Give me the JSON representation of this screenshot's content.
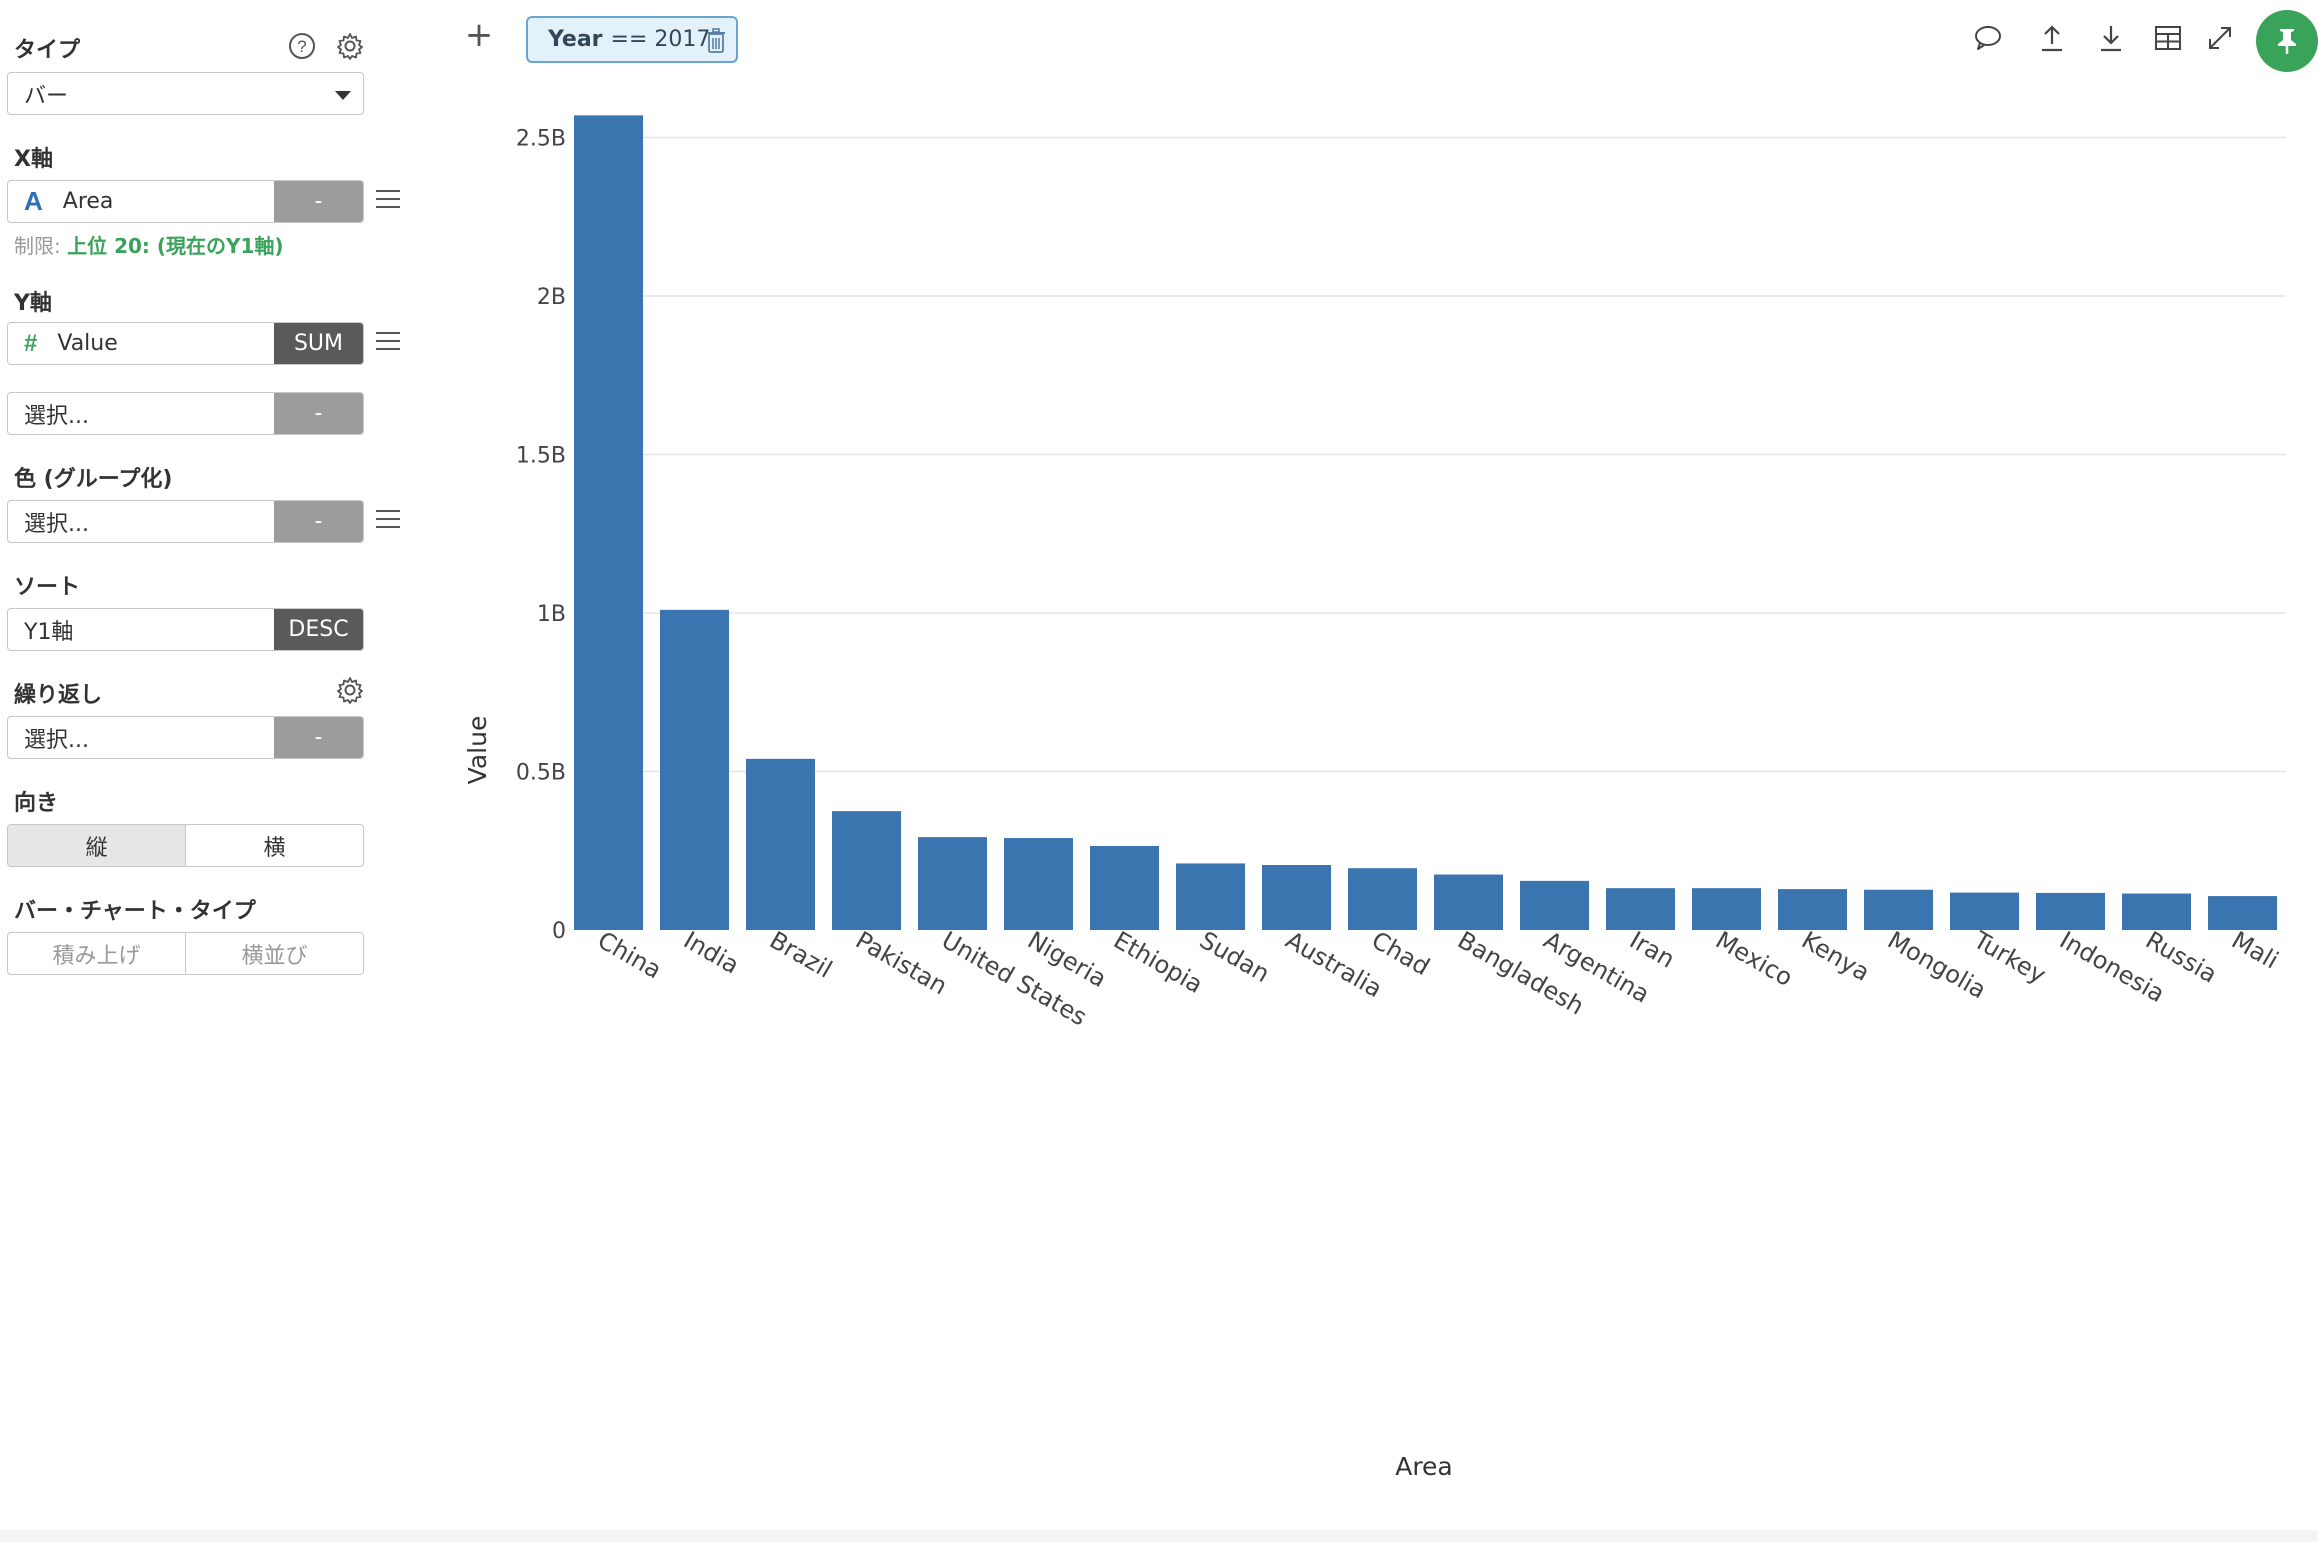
{
  "panel": {
    "type_label": "タイプ",
    "type_value": "バー",
    "x_label": "X軸",
    "x_field": "Area",
    "x_field_type": "A",
    "x_agg": "-",
    "limit_prefix": "制限: ",
    "limit_value": "上位 20: (現在のY1軸)",
    "y_label": "Y軸",
    "y_field": "Value",
    "y_field_type": "#",
    "y_agg": "SUM",
    "y2_field": "選択...",
    "y2_agg": "-",
    "color_label": "色 (グループ化)",
    "color_field": "選択...",
    "color_agg": "-",
    "sort_label": "ソート",
    "sort_field": "Y1軸",
    "sort_dir": "DESC",
    "repeat_label": "繰り返し",
    "repeat_field": "選択...",
    "repeat_agg": "-",
    "orient_label": "向き",
    "orient_opts": [
      "縦",
      "横"
    ],
    "bartype_label": "バー・チャート・タイプ",
    "bartype_opts": [
      "積み上げ",
      "横並び"
    ]
  },
  "topbar": {
    "plus": "+",
    "filter_field": "Year",
    "filter_expr": "== 2017"
  },
  "icons": {
    "help": "help-circle-icon",
    "gear": "gear-icon",
    "comment": "comment-icon",
    "upload": "upload-icon",
    "download": "download-icon",
    "table": "table-icon",
    "expand": "expand-icon",
    "pin": "pin-icon",
    "trash": "trash-icon"
  },
  "colors": {
    "bar": "#3a75b0",
    "pin_bg": "#3aa35a",
    "filter_bg": "#e3f1fb",
    "filter_border": "#6aa5d1",
    "accent_green": "#3aa35a"
  },
  "chart_data": {
    "type": "bar",
    "xlabel": "Area",
    "ylabel": "Value",
    "ylim": [
      0,
      2.65
    ],
    "yunit": "B",
    "yticks": [
      0,
      0.5,
      1,
      1.5,
      2,
      2.5
    ],
    "ytick_labels": [
      "0",
      "0.5B",
      "1B",
      "1.5B",
      "2B",
      "2.5B"
    ],
    "grid": true,
    "categories": [
      "China",
      "India",
      "Brazil",
      "Pakistan",
      "United States",
      "Nigeria",
      "Ethiopia",
      "Sudan",
      "Australia",
      "Chad",
      "Bangladesh",
      "Argentina",
      "Iran",
      "Mexico",
      "Kenya",
      "Mongolia",
      "Turkey",
      "Indonesia",
      "Russia",
      "Mali"
    ],
    "values": [
      2.57,
      1.01,
      0.54,
      0.375,
      0.293,
      0.29,
      0.265,
      0.21,
      0.205,
      0.195,
      0.175,
      0.155,
      0.132,
      0.132,
      0.129,
      0.127,
      0.118,
      0.117,
      0.115,
      0.107
    ]
  }
}
